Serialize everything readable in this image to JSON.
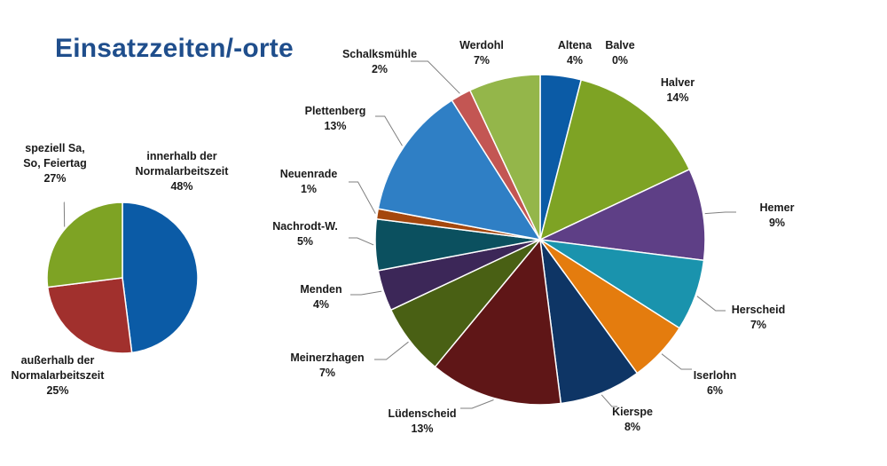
{
  "title": "Einsatzzeiten/-orte",
  "chart_data": [
    {
      "type": "pie",
      "title": "",
      "slices": [
        {
          "label": [
            "innerhalb der",
            "Normalarbeitszeit"
          ],
          "value": 48,
          "value_label": "48%",
          "color": "#0b5ba6"
        },
        {
          "label": [
            "außerhalb der",
            "Normalarbeitszeit"
          ],
          "value": 25,
          "value_label": "25%",
          "color": "#a1302d"
        },
        {
          "label": [
            "speziell Sa,",
            "So, Feiertag"
          ],
          "value": 27,
          "value_label": "27%",
          "color": "#7ea324"
        }
      ]
    },
    {
      "type": "pie",
      "title": "",
      "slices": [
        {
          "label": [
            "Altena"
          ],
          "value": 4,
          "value_label": "4%",
          "color": "#0b5ba6"
        },
        {
          "label": [
            "Balve"
          ],
          "value": 0,
          "value_label": "0%",
          "color": "#b83a36"
        },
        {
          "label": [
            "Halver"
          ],
          "value": 14,
          "value_label": "14%",
          "color": "#7ea324"
        },
        {
          "label": [
            "Hemer"
          ],
          "value": 9,
          "value_label": "9%",
          "color": "#5e3f86"
        },
        {
          "label": [
            "Herscheid"
          ],
          "value": 7,
          "value_label": "7%",
          "color": "#1a93ad"
        },
        {
          "label": [
            "Iserlohn"
          ],
          "value": 6,
          "value_label": "6%",
          "color": "#e47c0e"
        },
        {
          "label": [
            "Kierspe"
          ],
          "value": 8,
          "value_label": "8%",
          "color": "#0e3565"
        },
        {
          "label": [
            "Lüdenscheid"
          ],
          "value": 13,
          "value_label": "13%",
          "color": "#5f1617"
        },
        {
          "label": [
            "Meinerzhagen"
          ],
          "value": 7,
          "value_label": "7%",
          "color": "#496014"
        },
        {
          "label": [
            "Menden"
          ],
          "value": 4,
          "value_label": "4%",
          "color": "#3c2758"
        },
        {
          "label": [
            "Nachrodt-W."
          ],
          "value": 5,
          "value_label": "5%",
          "color": "#0b505f"
        },
        {
          "label": [
            "Neuenrade"
          ],
          "value": 1,
          "value_label": "1%",
          "color": "#a4470d"
        },
        {
          "label": [
            "Plettenberg"
          ],
          "value": 13,
          "value_label": "13%",
          "color": "#2f7fc5"
        },
        {
          "label": [
            "Schalksmühle"
          ],
          "value": 2,
          "value_label": "2%",
          "color": "#c35653"
        },
        {
          "label": [
            "Werdohl"
          ],
          "value": 7,
          "value_label": "7%",
          "color": "#94b64a"
        }
      ]
    }
  ]
}
